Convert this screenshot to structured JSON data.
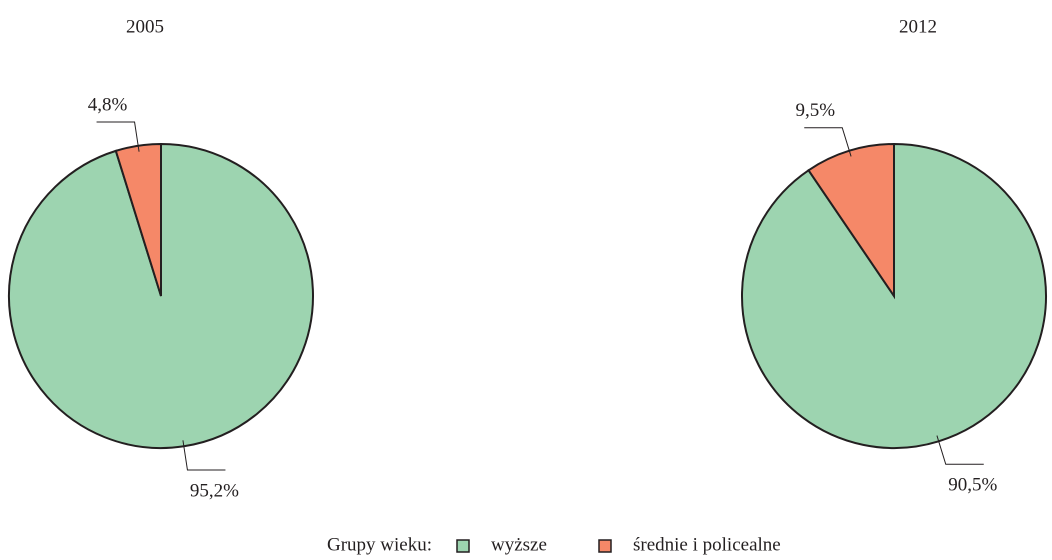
{
  "chart_data": [
    {
      "type": "pie",
      "title": "2005",
      "categories": [
        "wyższe",
        "średnie i policealne"
      ],
      "values": [
        95.2,
        4.8
      ],
      "value_labels": [
        "95,2%",
        "4,8%"
      ],
      "colors": [
        "#9dd4b0",
        "#f58868"
      ]
    },
    {
      "type": "pie",
      "title": "2012",
      "categories": [
        "wyższe",
        "średnie i policealne"
      ],
      "values": [
        90.5,
        9.5
      ],
      "value_labels": [
        "90,5%",
        "9,5%"
      ],
      "colors": [
        "#9dd4b0",
        "#f58868"
      ]
    }
  ],
  "legend_title": "Grupy wieku:"
}
